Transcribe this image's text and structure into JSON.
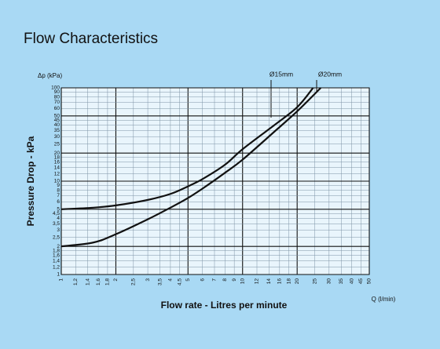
{
  "chart_data": {
    "type": "line",
    "title": "Flow Characteristics",
    "x_label": "Flow rate - Litres per minute",
    "y_label": "Pressure Drop - kPa",
    "x_unit": "Q (l/min)",
    "y_unit": "Δp (kPa)",
    "log_x": true,
    "log_y": true,
    "grid": true,
    "xlim": [
      1,
      50
    ],
    "ylim": [
      1,
      100
    ],
    "xticks": [
      1,
      {
        "value": 1.2,
        "label": "1,2"
      },
      {
        "value": 1.4,
        "label": "1,4"
      },
      {
        "value": 1.6,
        "label": "1,6"
      },
      {
        "value": 1.8,
        "label": "1,8"
      },
      2,
      {
        "value": 2.5,
        "label": "2,5"
      },
      3,
      {
        "value": 3.5,
        "label": "3,5"
      },
      4,
      {
        "value": 4.5,
        "label": "4,5"
      },
      5,
      6,
      7,
      8,
      9,
      10,
      12,
      14,
      16,
      18,
      20,
      25,
      30,
      35,
      40,
      45,
      50
    ],
    "yticks": [
      1,
      {
        "value": 1.2,
        "label": "1,2"
      },
      {
        "value": 1.4,
        "label": "1,4"
      },
      {
        "value": 1.6,
        "label": "1,6"
      },
      {
        "value": 1.8,
        "label": "1,8"
      },
      2,
      {
        "value": 2.5,
        "label": "2,5"
      },
      3,
      {
        "value": 3.5,
        "label": "3,5"
      },
      4,
      {
        "value": 4.5,
        "label": "4,5"
      },
      5,
      6,
      7,
      8,
      9,
      10,
      12,
      14,
      16,
      18,
      20,
      25,
      30,
      35,
      40,
      45,
      50,
      60,
      70,
      80,
      90,
      100
    ],
    "series": [
      {
        "name": "Ø15mm",
        "color": "#111111",
        "x": [
          1,
          1.5,
          2,
          3,
          4,
          5,
          6,
          8,
          10,
          15,
          20,
          24.5
        ],
        "values": [
          5,
          5.2,
          5.5,
          6.3,
          7.3,
          8.8,
          10.5,
          15,
          22,
          40,
          62,
          100
        ]
      },
      {
        "name": "Ø20mm",
        "color": "#111111",
        "x": [
          1,
          1.5,
          2,
          3,
          4,
          5,
          6,
          8,
          10,
          15,
          20,
          27
        ],
        "values": [
          2,
          2.2,
          2.7,
          3.9,
          5.2,
          6.6,
          8.3,
          12.3,
          17,
          34,
          56,
          100
        ]
      }
    ]
  }
}
